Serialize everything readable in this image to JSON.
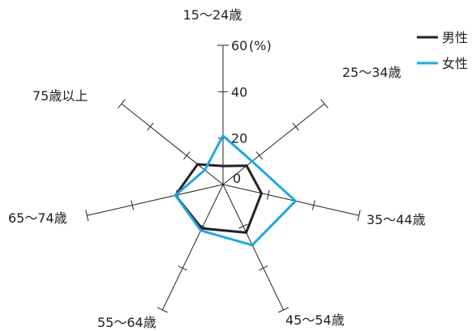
{
  "chart_data": {
    "type": "radar",
    "categories": [
      "15〜24歳",
      "25〜34歳",
      "35〜44歳",
      "45〜54歳",
      "55〜64歳",
      "65〜74歳",
      "75歳以上"
    ],
    "axis_ticks": [
      "0",
      "20",
      "40",
      "60"
    ],
    "axis_unit": "(%)",
    "rmax": 60,
    "grid": false,
    "legend_position": "top-right",
    "series": [
      {
        "name": "男性",
        "color": "#222222",
        "values": [
          8,
          13,
          17,
          23,
          21,
          21,
          14
        ]
      },
      {
        "name": "女性",
        "color": "#1ea8e0",
        "values": [
          21,
          16,
          32,
          29,
          22,
          21,
          10
        ]
      }
    ]
  }
}
